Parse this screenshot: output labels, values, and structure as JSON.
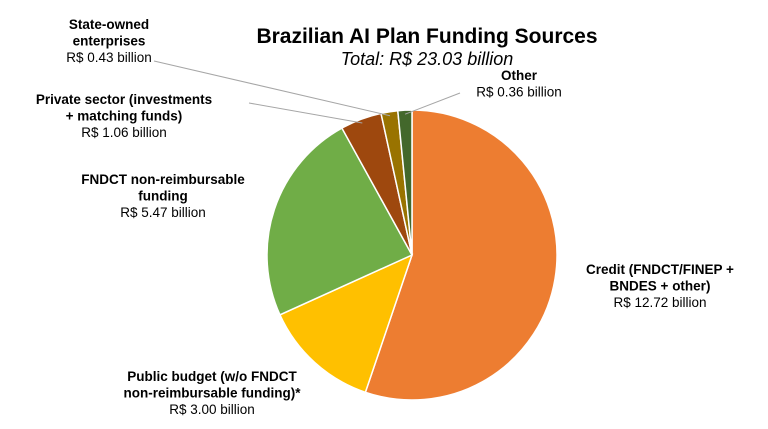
{
  "chart_data": {
    "type": "pie",
    "title": "Brazilian AI Plan Funding Sources",
    "subtitle": "Total: R$ 23.03 billion",
    "unit": "R$ billion",
    "start_angle_deg": 0,
    "direction": "clockwise",
    "slices": [
      {
        "name_lines": [
          "Credit (FNDCT/FINEP +",
          "BNDES + other)"
        ],
        "value": 12.72,
        "value_label": "R$ 12.72 billion",
        "color": "#ED7D31"
      },
      {
        "name_lines": [
          "Public budget (w/o FNDCT",
          "non-reimbursable funding)*"
        ],
        "value": 3.0,
        "value_label": "R$ 3.00 billion",
        "color": "#FFC000"
      },
      {
        "name_lines": [
          "FNDCT non-reimbursable",
          "funding"
        ],
        "value": 5.47,
        "value_label": "R$ 5.47 billion",
        "color": "#70AD47"
      },
      {
        "name_lines": [
          "Private sector (investments",
          "+ matching funds)"
        ],
        "value": 1.06,
        "value_label": "R$ 1.06 billion",
        "color": "#9E480E"
      },
      {
        "name_lines": [
          "State-owned",
          "enterprises"
        ],
        "value": 0.43,
        "value_label": "R$ 0.43 billion",
        "color": "#997300"
      },
      {
        "name_lines": [
          "Other"
        ],
        "value": 0.36,
        "value_label": "R$ 0.36 billion",
        "color": "#43682B"
      }
    ]
  }
}
